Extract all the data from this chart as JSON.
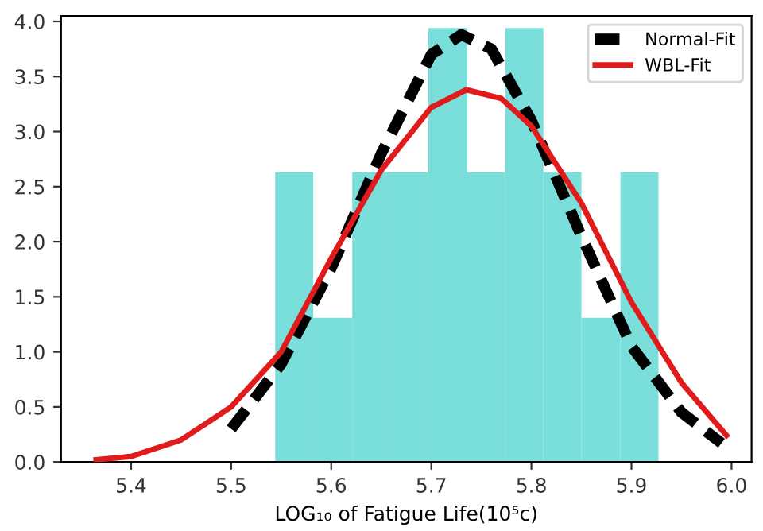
{
  "chart_data": {
    "type": "histogram",
    "xlabel": "LOG₁₀ of Fatigue Life(10⁵c)",
    "bins": [
      5.544,
      5.582,
      5.621,
      5.659,
      5.697,
      5.736,
      5.774,
      5.812,
      5.85,
      5.889,
      5.927
    ],
    "values": [
      2.63,
      1.31,
      2.63,
      2.63,
      3.94,
      2.63,
      3.94,
      2.63,
      1.31,
      2.63
    ],
    "color": "#7adedb",
    "series": [
      {
        "name": "Normal-Fit",
        "type": "line",
        "color": "#000000",
        "line_style": "dashed",
        "x": [
          5.5,
          5.55,
          5.6,
          5.65,
          5.7,
          5.73,
          5.76,
          5.8,
          5.85,
          5.9,
          5.95,
          5.99
        ],
        "values": [
          0.3,
          0.89,
          1.76,
          2.8,
          3.7,
          3.88,
          3.75,
          3.1,
          2.05,
          1.05,
          0.45,
          0.17
        ]
      },
      {
        "name": "WBL-Fit",
        "type": "line",
        "color": "#e01b1b",
        "line_style": "solid",
        "x": [
          5.365,
          5.4,
          5.45,
          5.5,
          5.55,
          5.6,
          5.65,
          5.7,
          5.735,
          5.77,
          5.8,
          5.85,
          5.9,
          5.95,
          5.995
        ],
        "values": [
          0.02,
          0.05,
          0.2,
          0.5,
          1.0,
          1.85,
          2.65,
          3.22,
          3.38,
          3.3,
          3.05,
          2.35,
          1.45,
          0.72,
          0.24
        ]
      }
    ],
    "xlim": [
      5.33,
      6.02
    ],
    "ylim": [
      0,
      4.05
    ],
    "xticks": [
      5.4,
      5.5,
      5.6,
      5.7,
      5.8,
      5.9,
      {
        "value": 6,
        "label": "6.0"
      }
    ],
    "yticks": [
      {
        "value": 0,
        "label": "0.0"
      },
      0.5,
      {
        "value": 1,
        "label": "1.0"
      },
      1.5,
      {
        "value": 2,
        "label": "2.0"
      },
      2.5,
      {
        "value": 3,
        "label": "3.0"
      },
      3.5,
      {
        "value": 4,
        "label": "4.0"
      }
    ],
    "grid": false,
    "legend": "top right"
  }
}
